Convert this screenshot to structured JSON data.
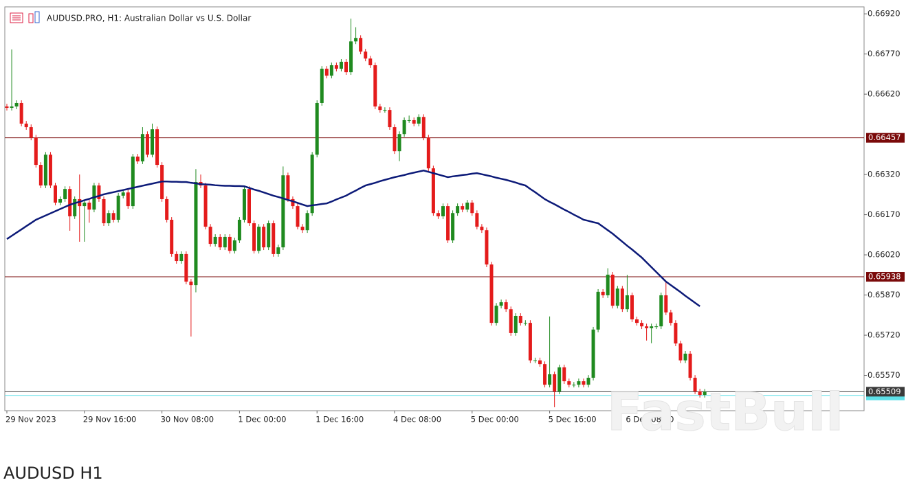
{
  "chart_data": {
    "type": "candlestick",
    "header": "AUDUSD.PRO, H1:  Australian Dollar vs U.S. Dollar",
    "caption": "AUDUSD H1",
    "watermark": "FastBull",
    "categories": [
      "29 Nov 2023",
      null,
      null,
      null,
      null,
      null,
      null,
      null,
      null,
      null,
      null,
      null,
      null,
      null,
      null,
      null,
      "29 Nov 16:00",
      null,
      null,
      null,
      null,
      null,
      null,
      null,
      null,
      null,
      null,
      null,
      null,
      null,
      null,
      null,
      "30 Nov 08:00",
      null,
      null,
      null,
      null,
      null,
      null,
      null,
      null,
      null,
      null,
      null,
      null,
      null,
      null,
      null,
      "1 Dec 00:00",
      null,
      null,
      null,
      null,
      null,
      null,
      null,
      null,
      null,
      null,
      null,
      null,
      null,
      null,
      null,
      "1 Dec 16:00",
      null,
      null,
      null,
      null,
      null,
      null,
      null,
      null,
      null,
      null,
      null,
      null,
      null,
      null,
      null,
      "4 Dec 08:00",
      null,
      null,
      null,
      null,
      null,
      null,
      null,
      null,
      null,
      null,
      null,
      null,
      null,
      null,
      null,
      "5 Dec 00:00",
      null,
      null,
      null,
      null,
      null,
      null,
      null,
      null,
      null,
      null,
      null,
      null,
      null,
      null,
      null,
      "5 Dec 16:00",
      null,
      null,
      null,
      null,
      null,
      null,
      null,
      null,
      null,
      null,
      null,
      null,
      null,
      null,
      null,
      "6 Dec 08:00",
      null,
      null,
      null,
      null,
      null,
      null,
      null,
      null,
      null,
      null,
      null,
      null,
      null,
      null,
      null,
      null
    ],
    "open": [
      0.66574,
      0.66569,
      0.66574,
      0.66587,
      0.6651,
      0.66497,
      0.66458,
      0.66356,
      0.66279,
      0.66394,
      0.66279,
      0.66215,
      0.66228,
      0.66266,
      0.66164,
      0.66228,
      0.66202,
      0.66215,
      0.66189,
      0.66279,
      0.66228,
      0.66138,
      0.66176,
      0.66151,
      0.66241,
      0.66253,
      0.66202,
      0.66387,
      0.66369,
      0.66471,
      0.66394,
      0.66489,
      0.66356,
      0.66228,
      0.66151,
      0.66023,
      0.65997,
      0.66023,
      0.6592,
      0.65907,
      0.66292,
      0.66279,
      0.66125,
      0.66061,
      0.66087,
      0.66048,
      0.66087,
      0.66035,
      0.66074,
      0.66151,
      0.66266,
      0.66138,
      0.66035,
      0.66125,
      0.66048,
      0.66138,
      0.66023,
      0.66048,
      0.66317,
      0.66228,
      0.66202,
      0.66125,
      0.66112,
      0.66176,
      0.66394,
      0.66587,
      0.66715,
      0.66689,
      0.66728,
      0.66715,
      0.66741,
      0.66702,
      0.66817,
      0.6683,
      0.66779,
      0.66753,
      0.66728,
      0.66574,
      0.66561,
      0.66561,
      0.66497,
      0.66407,
      0.66471,
      0.66523,
      0.66523,
      0.6651,
      0.66535,
      0.66458,
      0.66343,
      0.66176,
      0.66164,
      0.66202,
      0.66074,
      0.66176,
      0.66202,
      0.66189,
      0.66215,
      0.66176,
      0.66125,
      0.66112,
      0.65984,
      0.65766,
      0.6583,
      0.65843,
      0.65817,
      0.65728,
      0.65792,
      0.65766,
      0.65766,
      0.65626,
      0.65626,
      0.65612,
      0.65535,
      0.65574,
      0.6551,
      0.656,
      0.65548,
      0.65535,
      0.65535,
      0.65548,
      0.65535,
      0.65561,
      0.65741,
      0.65882,
      0.65869,
      0.65946,
      0.6583,
      0.65894,
      0.65817,
      0.65869,
      0.65779,
      0.65766,
      0.65753,
      0.65746,
      0.65753,
      0.65753,
      0.65869,
      0.65805,
      0.65766,
      0.65689,
      0.65626,
      0.65651,
      0.65561,
      0.6551,
      0.65497
    ],
    "high": [
      0.66584,
      0.66787,
      0.66597,
      0.66597,
      0.6652,
      0.66507,
      0.66468,
      0.66366,
      0.66404,
      0.66404,
      0.66289,
      0.66238,
      0.66276,
      0.66276,
      0.66238,
      0.6632,
      0.66225,
      0.66225,
      0.66289,
      0.66289,
      0.66238,
      0.66186,
      0.66186,
      0.66251,
      0.66263,
      0.66263,
      0.66397,
      0.66397,
      0.66497,
      0.66481,
      0.6651,
      0.66499,
      0.66366,
      0.66238,
      0.66161,
      0.66033,
      0.66033,
      0.66033,
      0.6593,
      0.6634,
      0.6632,
      0.66289,
      0.66135,
      0.66097,
      0.66097,
      0.66097,
      0.66097,
      0.66084,
      0.66161,
      0.66276,
      0.66276,
      0.66148,
      0.66135,
      0.66135,
      0.66148,
      0.66148,
      0.66058,
      0.6635,
      0.66327,
      0.66238,
      0.66212,
      0.66135,
      0.66186,
      0.66404,
      0.66597,
      0.66725,
      0.66725,
      0.66738,
      0.66738,
      0.66751,
      0.66751,
      0.66902,
      0.6687,
      0.6684,
      0.66789,
      0.66763,
      0.66738,
      0.66584,
      0.66571,
      0.66571,
      0.66507,
      0.66481,
      0.66533,
      0.6654,
      0.66533,
      0.66545,
      0.66545,
      0.66468,
      0.66353,
      0.66186,
      0.66212,
      0.66212,
      0.66186,
      0.66212,
      0.66212,
      0.66225,
      0.66225,
      0.66186,
      0.66135,
      0.66122,
      0.65994,
      0.6584,
      0.65853,
      0.65853,
      0.65827,
      0.65802,
      0.65802,
      0.65776,
      0.65776,
      0.65636,
      0.65636,
      0.65622,
      0.6579,
      0.65584,
      0.6561,
      0.6561,
      0.65558,
      0.65545,
      0.65558,
      0.65558,
      0.65571,
      0.65751,
      0.65892,
      0.65892,
      0.6597,
      0.65956,
      0.65904,
      0.65904,
      0.65945,
      0.65879,
      0.65789,
      0.65776,
      0.65763,
      0.65763,
      0.65763,
      0.65879,
      0.6592,
      0.65815,
      0.65776,
      0.65699,
      0.65661,
      0.65661,
      0.65571,
      0.6552,
      0.65519
    ],
    "low": [
      0.66559,
      0.66559,
      0.66564,
      0.665,
      0.66487,
      0.66448,
      0.66346,
      0.66269,
      0.66269,
      0.66269,
      0.66205,
      0.66205,
      0.66218,
      0.6611,
      0.66154,
      0.66069,
      0.66069,
      0.6614,
      0.66179,
      0.66218,
      0.66128,
      0.66128,
      0.66141,
      0.66141,
      0.66231,
      0.66192,
      0.66192,
      0.66359,
      0.66359,
      0.66384,
      0.66384,
      0.66346,
      0.66218,
      0.66141,
      0.66013,
      0.65987,
      0.65987,
      0.6591,
      0.65715,
      0.6588,
      0.66269,
      0.66115,
      0.66051,
      0.66051,
      0.66038,
      0.66038,
      0.66025,
      0.66025,
      0.66064,
      0.66141,
      0.66128,
      0.66025,
      0.66025,
      0.66038,
      0.66038,
      0.66013,
      0.66013,
      0.66038,
      0.66218,
      0.66192,
      0.66115,
      0.66102,
      0.66102,
      0.66166,
      0.66384,
      0.66577,
      0.66679,
      0.66679,
      0.66705,
      0.66705,
      0.66692,
      0.66692,
      0.66807,
      0.66769,
      0.66743,
      0.66718,
      0.66564,
      0.66551,
      0.66551,
      0.66487,
      0.66397,
      0.6637,
      0.66461,
      0.66513,
      0.665,
      0.665,
      0.66448,
      0.66333,
      0.66166,
      0.66154,
      0.66154,
      0.66064,
      0.66064,
      0.66166,
      0.66179,
      0.66179,
      0.66166,
      0.66115,
      0.66102,
      0.65974,
      0.65756,
      0.65756,
      0.6582,
      0.65807,
      0.65718,
      0.65718,
      0.65756,
      0.65756,
      0.65616,
      0.65616,
      0.65602,
      0.65525,
      0.65525,
      0.65451,
      0.655,
      0.65538,
      0.65525,
      0.65525,
      0.65525,
      0.65525,
      0.65525,
      0.65551,
      0.65731,
      0.65859,
      0.65859,
      0.6582,
      0.6582,
      0.65807,
      0.65807,
      0.65769,
      0.65756,
      0.65743,
      0.657,
      0.6569,
      0.65743,
      0.65743,
      0.65795,
      0.65756,
      0.65679,
      0.65616,
      0.65616,
      0.65551,
      0.655,
      0.65487,
      0.65487
    ],
    "close": [
      0.66569,
      0.66574,
      0.66587,
      0.6651,
      0.66497,
      0.66458,
      0.66356,
      0.66279,
      0.66394,
      0.66279,
      0.66215,
      0.66228,
      0.66266,
      0.66164,
      0.66228,
      0.66202,
      0.66215,
      0.66189,
      0.66279,
      0.66228,
      0.66138,
      0.66176,
      0.66151,
      0.66241,
      0.66253,
      0.66202,
      0.66387,
      0.66369,
      0.66471,
      0.66394,
      0.66489,
      0.66356,
      0.66228,
      0.66151,
      0.66023,
      0.65997,
      0.66023,
      0.6592,
      0.65907,
      0.66292,
      0.66279,
      0.66125,
      0.66061,
      0.66087,
      0.66048,
      0.66087,
      0.66035,
      0.66074,
      0.66151,
      0.66266,
      0.66138,
      0.66035,
      0.66125,
      0.66048,
      0.66138,
      0.66023,
      0.66048,
      0.66317,
      0.66228,
      0.66202,
      0.66125,
      0.66112,
      0.66176,
      0.66394,
      0.66587,
      0.66715,
      0.66689,
      0.66728,
      0.66715,
      0.66741,
      0.66702,
      0.66817,
      0.6683,
      0.66779,
      0.66753,
      0.66728,
      0.66574,
      0.66561,
      0.66561,
      0.66497,
      0.66407,
      0.66471,
      0.66523,
      0.66523,
      0.6651,
      0.66535,
      0.66458,
      0.66343,
      0.66176,
      0.66164,
      0.66202,
      0.66074,
      0.66176,
      0.66202,
      0.66189,
      0.66215,
      0.66176,
      0.66125,
      0.66112,
      0.65984,
      0.65766,
      0.6583,
      0.65843,
      0.65817,
      0.65728,
      0.65792,
      0.65766,
      0.65766,
      0.65626,
      0.65626,
      0.65612,
      0.65535,
      0.65574,
      0.6551,
      0.656,
      0.65548,
      0.65535,
      0.65535,
      0.65548,
      0.65535,
      0.65561,
      0.65741,
      0.65882,
      0.65869,
      0.65946,
      0.6583,
      0.65894,
      0.65817,
      0.65869,
      0.65779,
      0.65766,
      0.65753,
      0.65746,
      0.65753,
      0.65753,
      0.65869,
      0.65805,
      0.65766,
      0.65689,
      0.65626,
      0.65651,
      0.65561,
      0.6551,
      0.65497,
      0.65509
    ],
    "ma": [
      0.66079,
      0.66091,
      0.66103,
      0.66115,
      0.66127,
      0.66139,
      0.66151,
      0.66159,
      0.66167,
      0.66175,
      0.66183,
      0.66191,
      0.66199,
      0.66207,
      0.66213,
      0.66218,
      0.66224,
      0.66229,
      0.66235,
      0.6624,
      0.66246,
      0.6625,
      0.66254,
      0.66258,
      0.66262,
      0.66266,
      0.6627,
      0.66274,
      0.66278,
      0.66282,
      0.66286,
      0.6629,
      0.66294,
      0.66294,
      0.66293,
      0.66293,
      0.66292,
      0.66292,
      0.66289,
      0.66287,
      0.66284,
      0.66283,
      0.66282,
      0.6628,
      0.66279,
      0.66278,
      0.66278,
      0.66277,
      0.66277,
      0.66276,
      0.6627,
      0.66264,
      0.66259,
      0.66253,
      0.66247,
      0.66241,
      0.66236,
      0.66231,
      0.66225,
      0.6622,
      0.66214,
      0.66208,
      0.66202,
      0.66205,
      0.66207,
      0.6621,
      0.66212,
      0.66219,
      0.66227,
      0.66234,
      0.66241,
      0.66251,
      0.6626,
      0.6627,
      0.66279,
      0.66284,
      0.66289,
      0.66295,
      0.663,
      0.66305,
      0.6631,
      0.66314,
      0.66318,
      0.66323,
      0.66327,
      0.66331,
      0.66335,
      0.6633,
      0.66325,
      0.6632,
      0.66315,
      0.6631,
      0.66313,
      0.66315,
      0.66318,
      0.6632,
      0.66323,
      0.66325,
      0.66321,
      0.66317,
      0.66313,
      0.66308,
      0.66304,
      0.663,
      0.66295,
      0.6629,
      0.66284,
      0.66279,
      0.66266,
      0.66254,
      0.66241,
      0.66228,
      0.66218,
      0.66209,
      0.66199,
      0.66189,
      0.6618,
      0.6617,
      0.66161,
      0.66151,
      0.66147,
      0.66142,
      0.66138,
      0.66125,
      0.66112,
      0.66099,
      0.66084,
      0.66069,
      0.66054,
      0.6604,
      0.66025,
      0.6601,
      0.65992,
      0.65974,
      0.65956,
      0.65938,
      0.6592,
      0.65907,
      0.65894,
      0.65881,
      0.65867,
      0.65854,
      0.65841,
      0.65828,
      null
    ],
    "ma_color": "#0c1a78",
    "up_color": "#1f8a1f",
    "down_color": "#e41b1b",
    "levels": [
      {
        "value": 0.66457,
        "color": "#7a0a0a"
      },
      {
        "value": 0.65938,
        "color": "#7a0a0a"
      },
      {
        "value": 0.65509,
        "color": "#3a3a3a"
      }
    ],
    "ask_line": {
      "value": 0.65495,
      "color": "#5ee0e8"
    },
    "ylim": [
      0.65438,
      0.66946
    ],
    "yticks": [
      {
        "value": 0.6557,
        "label": "0.65570"
      },
      {
        "value": 0.6572,
        "label": "0.65720"
      },
      {
        "value": 0.6587,
        "label": "0.65870"
      },
      {
        "value": 0.6602,
        "label": "0.66020"
      },
      {
        "value": 0.6617,
        "label": "0.66170"
      },
      {
        "value": 0.6632,
        "label": "0.66320"
      },
      {
        "value": 0.6662,
        "label": "0.66620"
      },
      {
        "value": 0.6677,
        "label": "0.66770"
      },
      {
        "value": 0.6692,
        "label": "0.66920"
      }
    ]
  }
}
